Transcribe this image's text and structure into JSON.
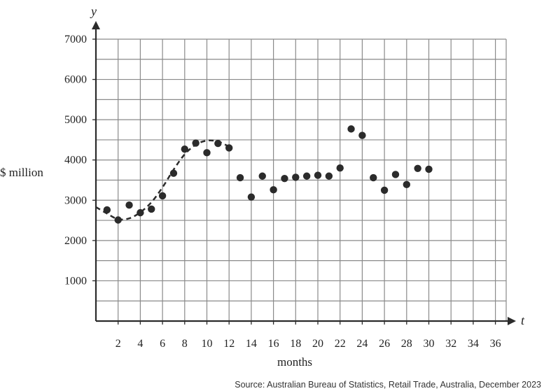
{
  "chart_data": {
    "type": "scatter",
    "title": "",
    "xlabel": "months",
    "ylabel": "$ million",
    "x_variable": "t",
    "y_variable": "y",
    "xlim": [
      0,
      37
    ],
    "ylim": [
      0,
      7000
    ],
    "x_ticks": [
      2,
      4,
      6,
      8,
      10,
      12,
      14,
      16,
      18,
      20,
      22,
      24,
      26,
      28,
      30,
      32,
      34,
      36
    ],
    "y_ticks": [
      1000,
      2000,
      3000,
      4000,
      5000,
      6000,
      7000
    ],
    "grid": true,
    "source": "Source: Australian Bureau of Statistics, Retail Trade, Australia, December 2023",
    "series": [
      {
        "type": "scatter",
        "color": "#2b2b2b",
        "points": [
          [
            1,
            2760
          ],
          [
            2,
            2510
          ],
          [
            3,
            2880
          ],
          [
            4,
            2690
          ],
          [
            5,
            2780
          ],
          [
            6,
            3110
          ],
          [
            7,
            3670
          ],
          [
            8,
            4270
          ],
          [
            9,
            4420
          ],
          [
            10,
            4180
          ],
          [
            11,
            4410
          ],
          [
            12,
            4300
          ],
          [
            13,
            3560
          ],
          [
            14,
            3080
          ],
          [
            15,
            3600
          ],
          [
            16,
            3260
          ],
          [
            17,
            3540
          ],
          [
            18,
            3570
          ],
          [
            19,
            3600
          ],
          [
            20,
            3620
          ],
          [
            21,
            3600
          ],
          [
            22,
            3800
          ],
          [
            23,
            4770
          ],
          [
            24,
            4610
          ],
          [
            25,
            3560
          ],
          [
            26,
            3250
          ],
          [
            27,
            3640
          ],
          [
            28,
            3390
          ],
          [
            29,
            3790
          ],
          [
            30,
            3770
          ]
        ]
      },
      {
        "type": "line",
        "style": "dashed",
        "color": "#2b2b2b",
        "points": [
          [
            0,
            2830
          ],
          [
            1,
            2670
          ],
          [
            2,
            2530
          ],
          [
            3,
            2550
          ],
          [
            4,
            2700
          ],
          [
            5,
            2950
          ],
          [
            6,
            3320
          ],
          [
            7,
            3760
          ],
          [
            8,
            4140
          ],
          [
            9,
            4380
          ],
          [
            10,
            4480
          ],
          [
            11,
            4460
          ],
          [
            12,
            4330
          ]
        ]
      }
    ]
  }
}
